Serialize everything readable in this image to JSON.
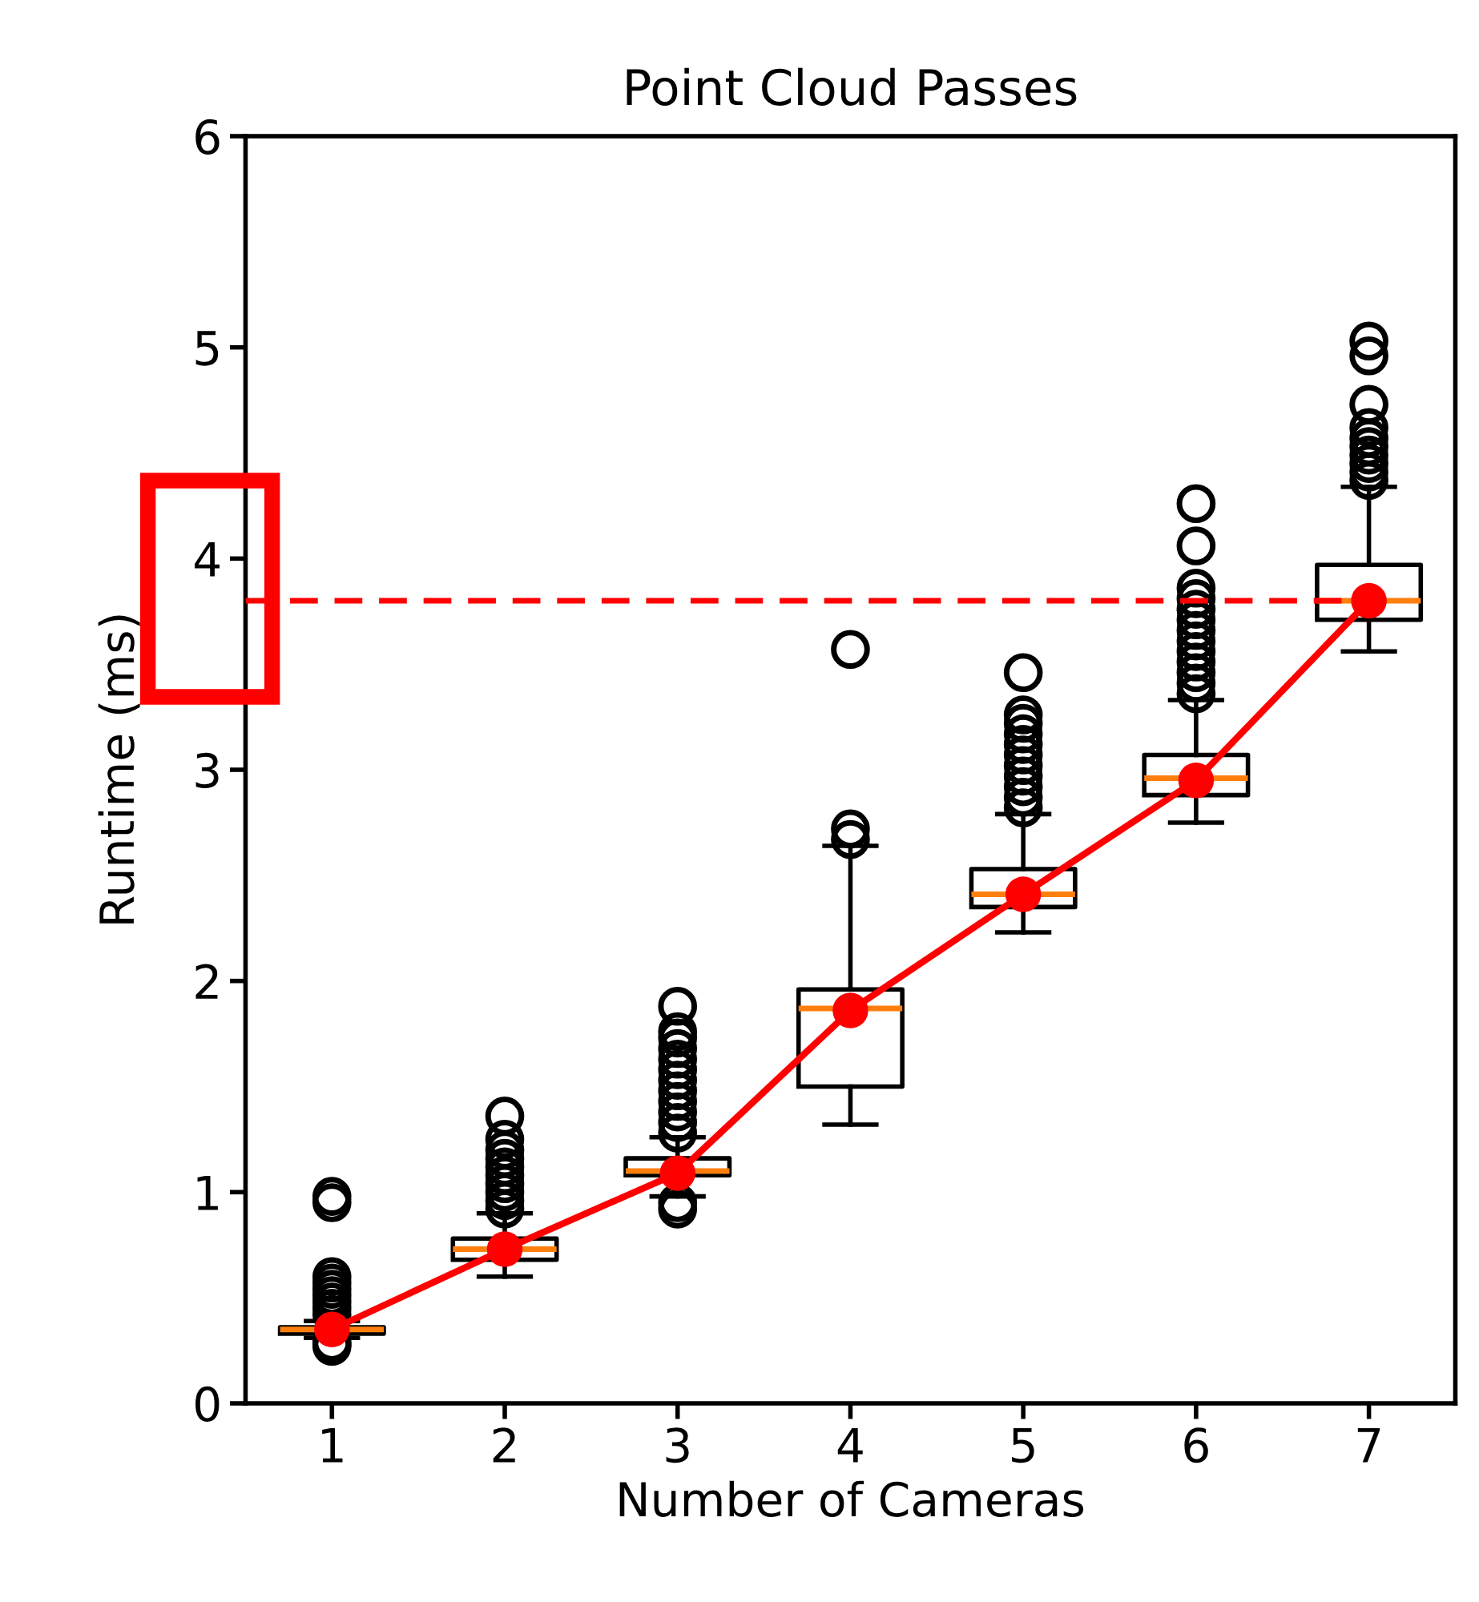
{
  "chart_data": {
    "type": "box",
    "title": "Point Cloud Passes",
    "xlabel": "Number of Cameras",
    "ylabel": "Runtime (ms)",
    "categories": [
      "1",
      "2",
      "3",
      "4",
      "5",
      "6",
      "7"
    ],
    "boxes": [
      {
        "low": 0.31,
        "q1": 0.33,
        "median": 0.35,
        "q3": 0.36,
        "high": 0.39,
        "outliers": [
          0.27,
          0.28,
          0.29,
          0.42,
          0.45,
          0.48,
          0.51,
          0.54,
          0.57,
          0.6,
          0.95,
          0.98
        ]
      },
      {
        "low": 0.6,
        "q1": 0.68,
        "median": 0.73,
        "q3": 0.78,
        "high": 0.9,
        "outliers": [
          0.92,
          0.96,
          1.0,
          1.04,
          1.08,
          1.12,
          1.16,
          1.2,
          1.25,
          1.36
        ]
      },
      {
        "low": 0.98,
        "q1": 1.08,
        "median": 1.1,
        "q3": 1.16,
        "high": 1.26,
        "outliers": [
          0.92,
          0.95,
          1.28,
          1.33,
          1.38,
          1.43,
          1.48,
          1.53,
          1.58,
          1.63,
          1.68,
          1.73,
          1.76,
          1.88
        ]
      },
      {
        "low": 1.32,
        "q1": 1.5,
        "median": 1.87,
        "q3": 1.96,
        "high": 2.64,
        "outliers": [
          2.67,
          2.72,
          3.57
        ]
      },
      {
        "low": 2.23,
        "q1": 2.35,
        "median": 2.41,
        "q3": 2.53,
        "high": 2.79,
        "outliers": [
          2.82,
          2.87,
          2.92,
          2.97,
          3.02,
          3.07,
          3.12,
          3.17,
          3.22,
          3.26,
          3.46
        ]
      },
      {
        "low": 2.75,
        "q1": 2.88,
        "median": 2.96,
        "q3": 3.07,
        "high": 3.33,
        "outliers": [
          3.36,
          3.41,
          3.46,
          3.51,
          3.56,
          3.61,
          3.66,
          3.71,
          3.76,
          3.81,
          3.86,
          4.06,
          4.26
        ]
      },
      {
        "low": 3.56,
        "q1": 3.71,
        "median": 3.8,
        "q3": 3.97,
        "high": 4.34,
        "outliers": [
          4.37,
          4.41,
          4.45,
          4.49,
          4.53,
          4.57,
          4.62,
          4.73,
          4.96,
          5.03
        ]
      }
    ],
    "series": [
      {
        "type": "line",
        "color": "#ff0000",
        "marker": "circle",
        "values": [
          0.35,
          0.73,
          1.09,
          1.86,
          2.41,
          2.95,
          3.8
        ]
      }
    ],
    "ref_lines": [
      {
        "axis": "y",
        "value": 3.8,
        "color": "#ff0000",
        "line_style": "dashed"
      }
    ],
    "ylim": [
      0,
      6
    ],
    "yticks": [
      0,
      1,
      2,
      3,
      4,
      5,
      6
    ]
  }
}
